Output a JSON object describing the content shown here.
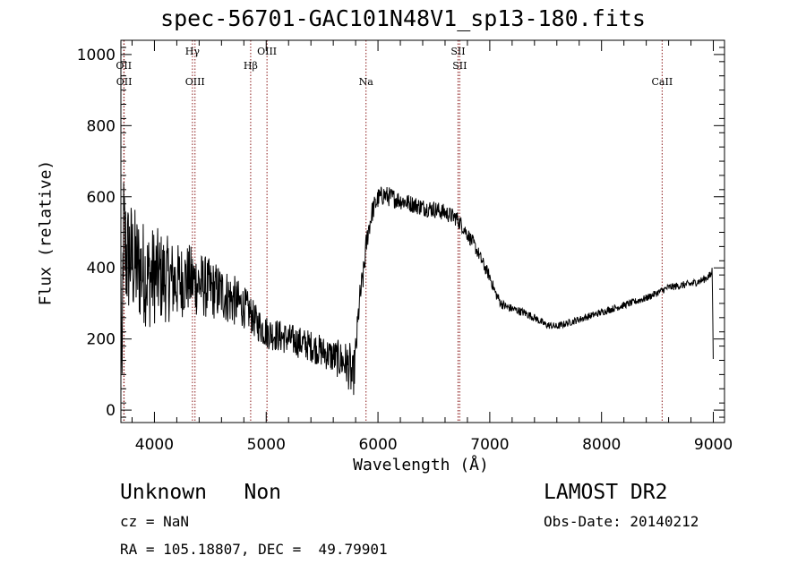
{
  "title": "spec-56701-GAC101N48V1_sp13-180.fits",
  "info": {
    "class_text": "Unknown   Non",
    "survey": "LAMOST DR2",
    "cz": "cz = NaN",
    "obs_date": "Obs-Date: 20140212",
    "radec": "RA = 105.18807, DEC =  49.79901"
  },
  "chart_data": {
    "type": "line",
    "title": "spec-56701-GAC101N48V1_sp13-180.fits",
    "xlabel": "Wavelength (Å)",
    "ylabel": "Flux (relative)",
    "xlim": [
      3700,
      9100
    ],
    "ylim": [
      -35,
      1040
    ],
    "x_ticks": [
      4000,
      5000,
      6000,
      7000,
      8000,
      9000
    ],
    "y_ticks": [
      0,
      200,
      400,
      600,
      800,
      1000
    ],
    "grid": false,
    "line_color": "#000000",
    "marker_color": "#8b1a1a",
    "lines": [
      {
        "name": "OII",
        "wavelength": 3726,
        "row": 1
      },
      {
        "name": "OII",
        "wavelength": 3729,
        "row": 2
      },
      {
        "name": "Hγ",
        "wavelength": 4340,
        "row": 0
      },
      {
        "name": "OIII",
        "wavelength": 4363,
        "row": 2
      },
      {
        "name": "Hβ",
        "wavelength": 4861,
        "row": 1
      },
      {
        "name": "OIII",
        "wavelength": 5007,
        "row": 0
      },
      {
        "name": "Na",
        "wavelength": 5893,
        "row": 2
      },
      {
        "name": "SII",
        "wavelength": 6716,
        "row": 0
      },
      {
        "name": "SII",
        "wavelength": 6731,
        "row": 1
      },
      {
        "name": "CaII",
        "wavelength": 8542,
        "row": 2
      }
    ],
    "spectrum": {
      "x": [
        3700,
        3710,
        3720,
        3740,
        3760,
        3780,
        3800,
        3850,
        3900,
        3950,
        4000,
        4100,
        4200,
        4300,
        4400,
        4500,
        4600,
        4700,
        4800,
        4850,
        4900,
        4950,
        5000,
        5100,
        5200,
        5300,
        5400,
        5500,
        5600,
        5700,
        5750,
        5770,
        5790,
        5810,
        5830,
        5850,
        5870,
        5890,
        5910,
        5950,
        6000,
        6050,
        6100,
        6200,
        6300,
        6400,
        6500,
        6600,
        6700,
        6750,
        6800,
        6850,
        6900,
        6950,
        7000,
        7050,
        7100,
        7150,
        7200,
        7300,
        7400,
        7500,
        7600,
        7700,
        7800,
        7900,
        8000,
        8100,
        8200,
        8300,
        8400,
        8500,
        8600,
        8700,
        8800,
        8900,
        8980,
        8990,
        9000
      ],
      "y": [
        380,
        60,
        500,
        450,
        420,
        440,
        420,
        400,
        390,
        370,
        380,
        370,
        360,
        370,
        355,
        340,
        330,
        310,
        290,
        275,
        250,
        235,
        220,
        210,
        200,
        190,
        180,
        165,
        150,
        135,
        120,
        80,
        120,
        200,
        290,
        340,
        380,
        450,
        500,
        560,
        595,
        605,
        600,
        590,
        580,
        570,
        565,
        555,
        540,
        520,
        495,
        470,
        440,
        405,
        375,
        330,
        300,
        290,
        285,
        275,
        260,
        240,
        235,
        245,
        255,
        265,
        275,
        285,
        295,
        305,
        315,
        330,
        345,
        350,
        355,
        365,
        380,
        395,
        120
      ],
      "noise": [
        10,
        10,
        200,
        190,
        180,
        170,
        165,
        160,
        150,
        145,
        140,
        125,
        110,
        100,
        95,
        85,
        80,
        75,
        60,
        55,
        50,
        50,
        48,
        47,
        45,
        45,
        45,
        45,
        50,
        60,
        70,
        70,
        60,
        50,
        45,
        45,
        40,
        38,
        36,
        32,
        30,
        29,
        28,
        26,
        25,
        25,
        25,
        24,
        23,
        22,
        20,
        20,
        18,
        18,
        16,
        15,
        14,
        13,
        12,
        12,
        11,
        11,
        10,
        10,
        10,
        10,
        10,
        10,
        10,
        10,
        10,
        10,
        10,
        11,
        11,
        11,
        12,
        12,
        5
      ]
    }
  }
}
